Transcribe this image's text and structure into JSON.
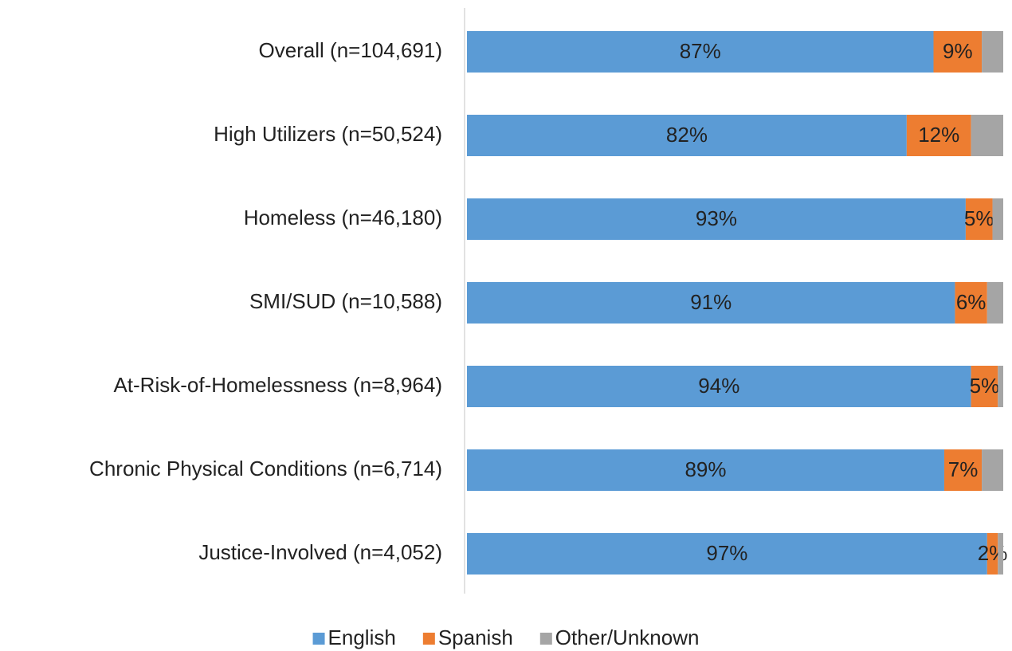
{
  "chart_data": {
    "type": "stacked-bar-horizontal",
    "categories": [
      "Overall (n=104,691)",
      "High Utilizers (n=50,524)",
      "Homeless (n=46,180)",
      "SMI/SUD (n=10,588)",
      "At-Risk-of-Homelessness (n=8,964)",
      "Chronic Physical Conditions (n=6,714)",
      "Justice-Involved (n=4,052)"
    ],
    "series": [
      {
        "name": "English",
        "color": "#5b9bd5",
        "values": [
          87,
          82,
          93,
          91,
          94,
          89,
          97
        ],
        "value_labels": [
          "87%",
          "82%",
          "93%",
          "91%",
          "94%",
          "89%",
          "97%"
        ]
      },
      {
        "name": "Spanish",
        "color": "#ed7d31",
        "values": [
          9,
          12,
          5,
          6,
          5,
          7,
          2
        ],
        "value_labels": [
          "9%",
          "12%",
          "5%",
          "6%",
          "5%",
          "7%",
          "2%"
        ]
      },
      {
        "name": "Other/Unknown",
        "color": "#a5a5a5",
        "values": [
          4,
          6,
          2,
          3,
          1,
          4,
          1
        ]
      }
    ],
    "xlim": [
      0,
      100
    ],
    "legend": "bottom"
  }
}
